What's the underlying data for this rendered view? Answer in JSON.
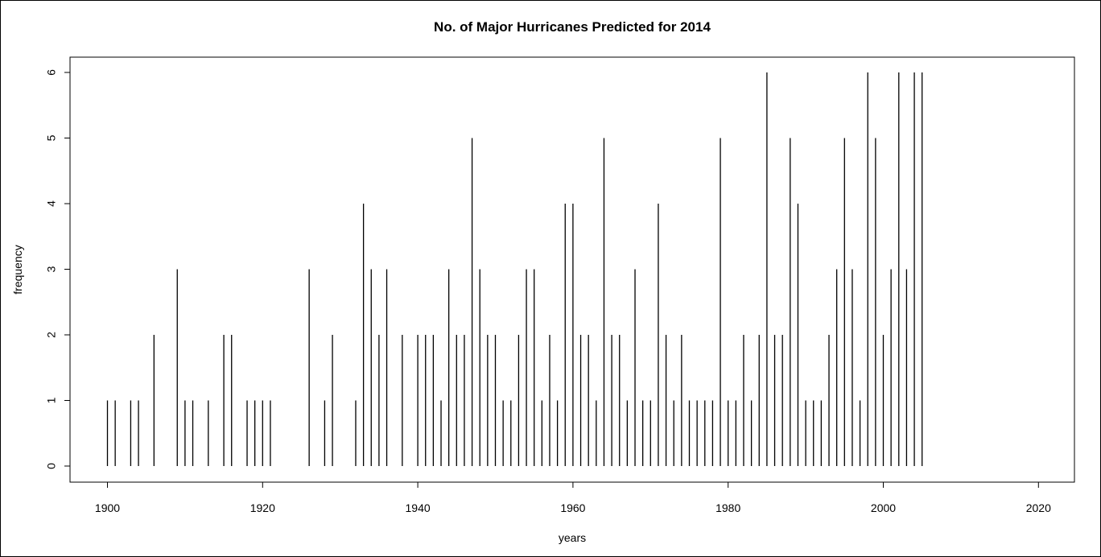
{
  "chart_data": {
    "type": "bar",
    "style": "histogram-spikes",
    "title": "No. of Major Hurricanes Predicted for 2014",
    "xlabel": "years",
    "ylabel": "frequency",
    "xlim": [
      1895,
      2025
    ],
    "ylim": [
      0,
      6
    ],
    "xticks": [
      1900,
      1920,
      1940,
      1960,
      1980,
      2000,
      2020
    ],
    "yticks": [
      0,
      1,
      2,
      3,
      4,
      5,
      6
    ],
    "grid": false,
    "legend": "none",
    "color": "#000000",
    "x": [
      1900,
      1901,
      1903,
      1904,
      1906,
      1909,
      1910,
      1911,
      1913,
      1915,
      1916,
      1918,
      1919,
      1920,
      1921,
      1926,
      1928,
      1929,
      1932,
      1933,
      1934,
      1935,
      1936,
      1938,
      1940,
      1941,
      1942,
      1943,
      1944,
      1945,
      1946,
      1947,
      1948,
      1949,
      1950,
      1951,
      1952,
      1953,
      1954,
      1955,
      1956,
      1957,
      1958,
      1959,
      1960,
      1961,
      1962,
      1963,
      1964,
      1965,
      1966,
      1967,
      1968,
      1969,
      1970,
      1971,
      1972,
      1973,
      1974,
      1975,
      1976,
      1977,
      1978,
      1979,
      1980,
      1981,
      1982,
      1983,
      1984,
      1985,
      1986,
      1987,
      1988,
      1989,
      1990,
      1991,
      1992,
      1993,
      1994,
      1995,
      1996,
      1997,
      1998,
      1999,
      2000,
      2001,
      2002,
      2003,
      2004,
      2005
    ],
    "values": [
      1,
      1,
      1,
      1,
      2,
      3,
      1,
      1,
      1,
      2,
      2,
      1,
      1,
      1,
      1,
      3,
      1,
      2,
      1,
      4,
      3,
      2,
      3,
      2,
      2,
      2,
      2,
      1,
      3,
      2,
      2,
      5,
      3,
      2,
      2,
      1,
      1,
      2,
      3,
      3,
      1,
      2,
      1,
      4,
      4,
      2,
      2,
      1,
      5,
      2,
      2,
      1,
      3,
      1,
      1,
      4,
      2,
      1,
      2,
      1,
      1,
      1,
      1,
      5,
      1,
      1,
      2,
      1,
      2,
      6,
      2,
      2,
      5,
      4,
      1,
      1,
      1,
      2,
      3,
      5,
      3,
      1,
      6,
      5,
      2,
      3,
      6,
      3,
      6,
      6
    ]
  }
}
